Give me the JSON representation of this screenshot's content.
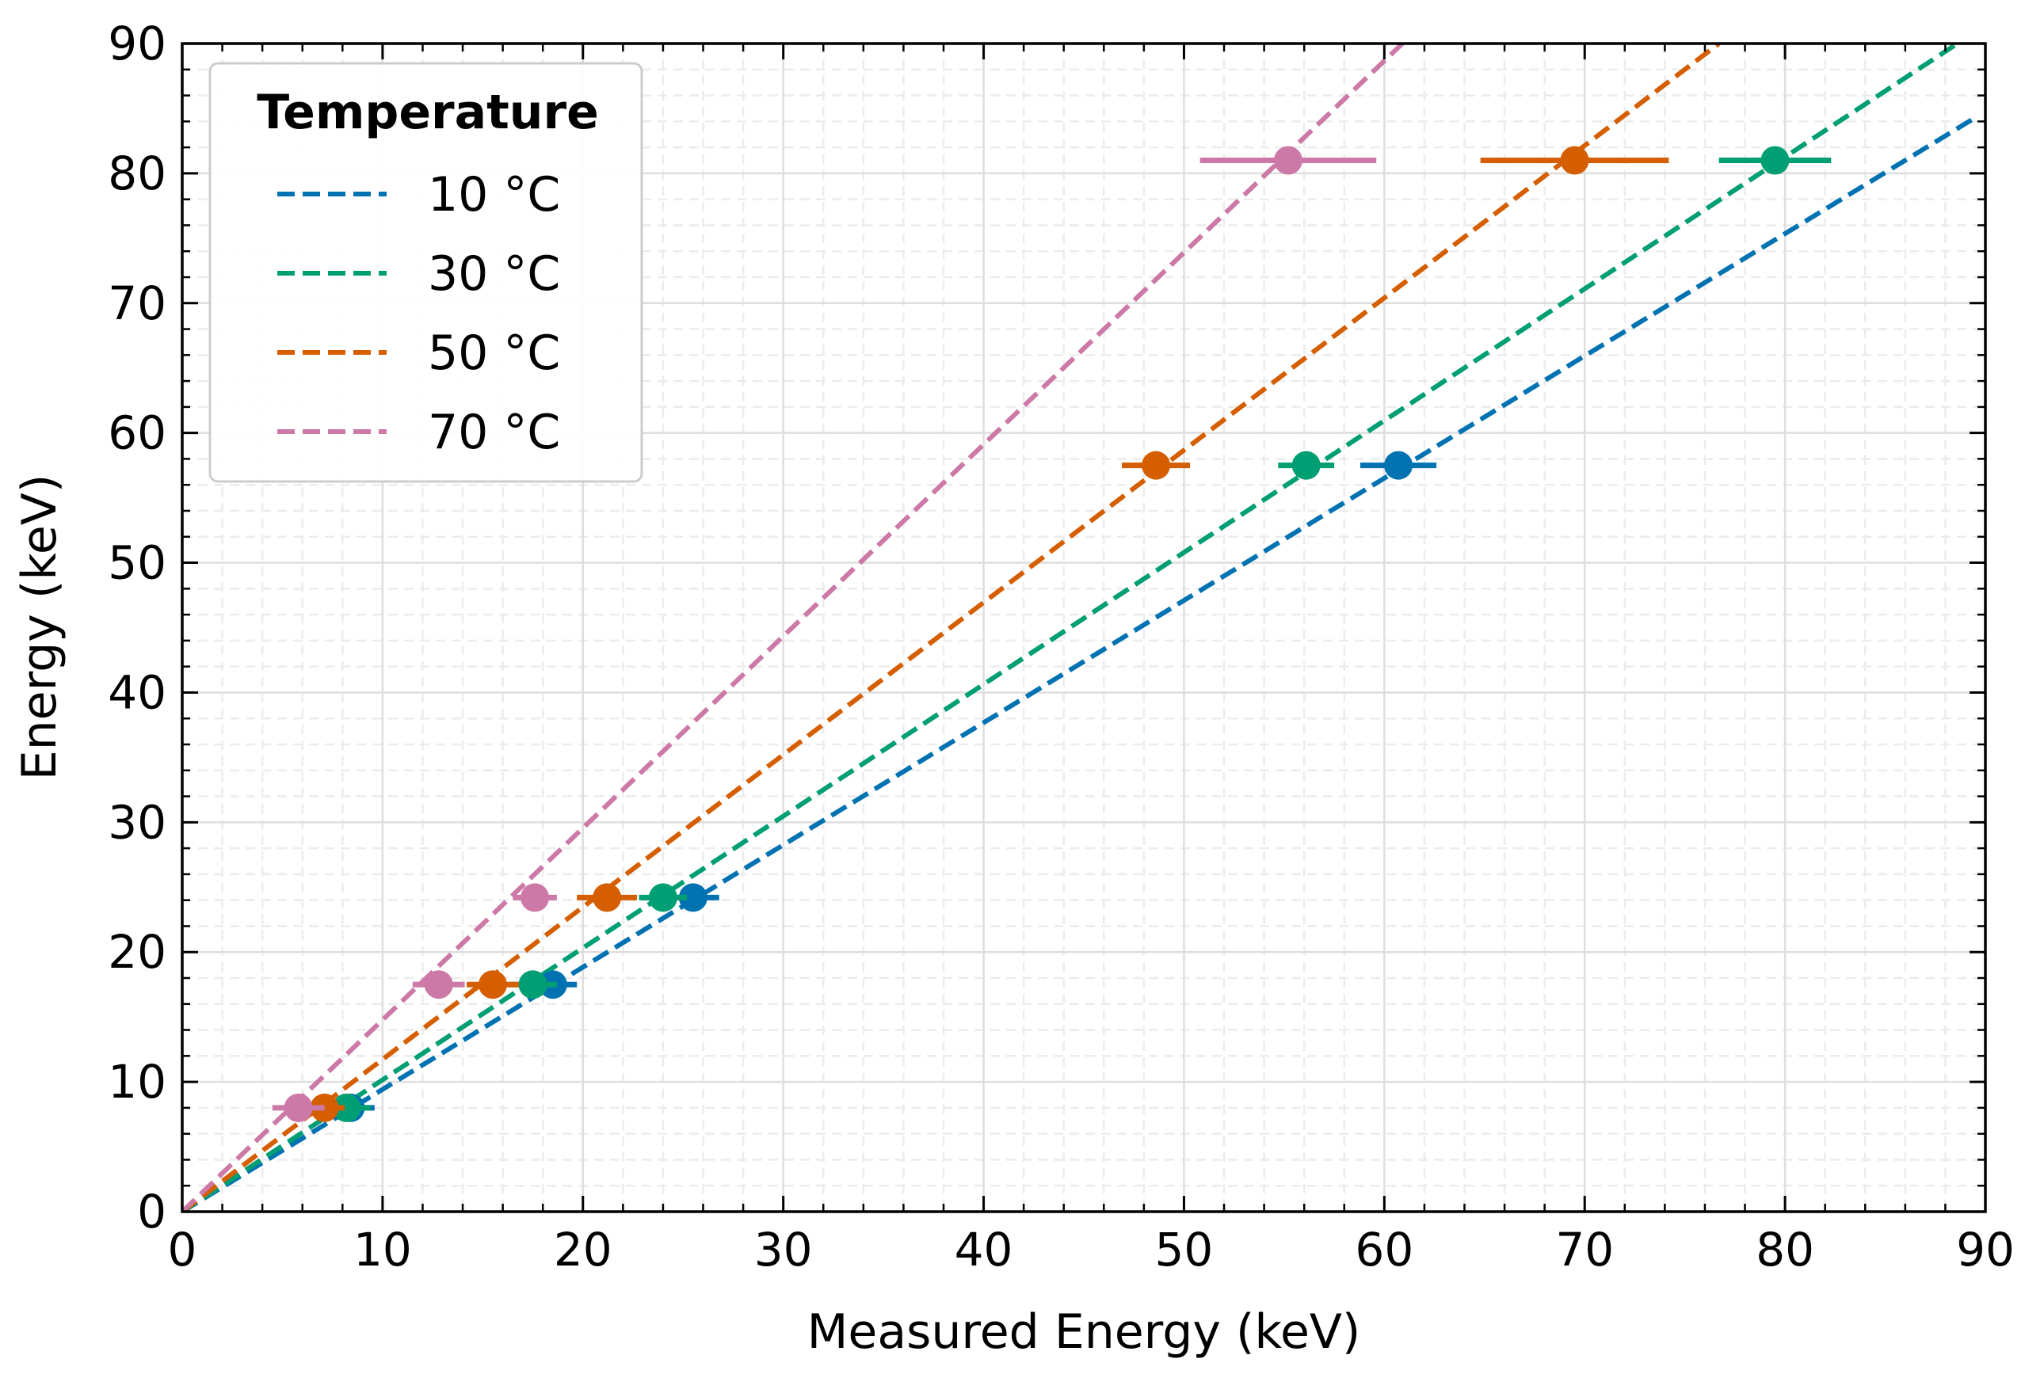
{
  "chart_data": {
    "type": "scatter",
    "xlabel": "Measured Energy (keV)",
    "ylabel": "Energy (keV)",
    "xlim": [
      0,
      90
    ],
    "ylim": [
      0,
      90
    ],
    "xticks": [
      0,
      10,
      20,
      30,
      40,
      50,
      60,
      70,
      80,
      90
    ],
    "yticks": [
      0,
      10,
      20,
      30,
      40,
      50,
      60,
      70,
      80,
      90
    ],
    "grid": true,
    "legend": {
      "title": "Temperature",
      "location": "upper-left"
    },
    "series": [
      {
        "name": "10 °C",
        "color": "#0072b2",
        "fit_line": [
          [
            0,
            0
          ],
          [
            89.5,
            84.3
          ]
        ],
        "points": [
          {
            "x": 8.4,
            "y": 8.0,
            "xerr": 1.2
          },
          {
            "x": 18.5,
            "y": 17.5,
            "xerr": 1.2
          },
          {
            "x": 25.5,
            "y": 24.2,
            "xerr": 1.3
          },
          {
            "x": 60.7,
            "y": 57.5,
            "xerr": 1.9
          }
        ]
      },
      {
        "name": "30 °C",
        "color": "#009e73",
        "fit_line": [
          [
            0,
            0
          ],
          [
            88.6,
            90.0
          ]
        ],
        "points": [
          {
            "x": 8.2,
            "y": 8.0,
            "xerr": 1.2
          },
          {
            "x": 17.5,
            "y": 17.5,
            "xerr": 1.2
          },
          {
            "x": 24.0,
            "y": 24.2,
            "xerr": 1.2
          },
          {
            "x": 56.1,
            "y": 57.5,
            "xerr": 1.4
          },
          {
            "x": 79.5,
            "y": 81.0,
            "xerr": 2.8
          }
        ]
      },
      {
        "name": "50 °C",
        "color": "#d55e00",
        "fit_line": [
          [
            0,
            0
          ],
          [
            76.7,
            90.0
          ]
        ],
        "points": [
          {
            "x": 7.1,
            "y": 8.0,
            "xerr": 1.0
          },
          {
            "x": 15.5,
            "y": 17.5,
            "xerr": 1.3
          },
          {
            "x": 21.2,
            "y": 24.2,
            "xerr": 1.5
          },
          {
            "x": 48.6,
            "y": 57.5,
            "xerr": 1.7
          },
          {
            "x": 69.5,
            "y": 81.0,
            "xerr": 4.7
          }
        ]
      },
      {
        "name": "70 °C",
        "color": "#cc79a7",
        "fit_line": [
          [
            0,
            0
          ],
          [
            60.9,
            90.0
          ]
        ],
        "points": [
          {
            "x": 5.8,
            "y": 8.0,
            "xerr": 1.3
          },
          {
            "x": 12.8,
            "y": 17.5,
            "xerr": 1.3
          },
          {
            "x": 17.6,
            "y": 24.2,
            "xerr": 1.1
          },
          {
            "x": 55.2,
            "y": 81.0,
            "xerr": 4.4
          }
        ]
      }
    ]
  }
}
